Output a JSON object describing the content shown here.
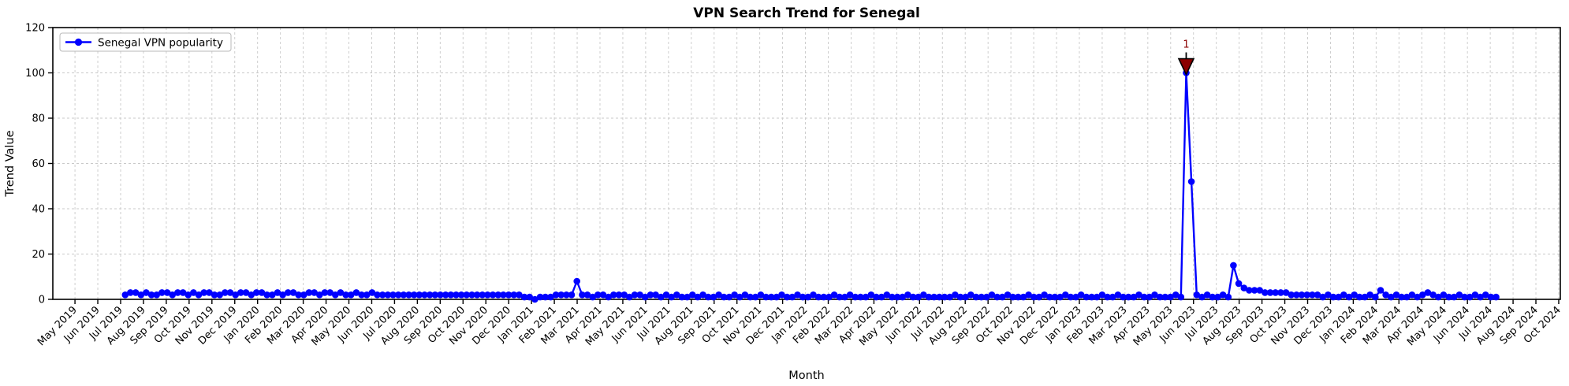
{
  "chart_data": {
    "type": "line",
    "title": "VPN Search Trend for Senegal",
    "xlabel": "Month",
    "ylabel": "Trend Value",
    "ylim": [
      0,
      120
    ],
    "yticks": [
      0,
      20,
      40,
      60,
      80,
      100,
      120
    ],
    "xlim_month_index": [
      -0.97,
      65.07
    ],
    "grid": true,
    "grid_color": "#c9c9c9",
    "background_color": "#ffffff",
    "x_tick_labels": [
      "May 2019",
      "Jun 2019",
      "Jul 2019",
      "Aug 2019",
      "Sep 2019",
      "Oct 2019",
      "Nov 2019",
      "Dec 2019",
      "Jan 2020",
      "Feb 2020",
      "Mar 2020",
      "Apr 2020",
      "May 2020",
      "Jun 2020",
      "Jul 2020",
      "Aug 2020",
      "Sep 2020",
      "Oct 2020",
      "Nov 2020",
      "Dec 2020",
      "Jan 2021",
      "Feb 2021",
      "Mar 2021",
      "Apr 2021",
      "May 2021",
      "Jun 2021",
      "Jul 2021",
      "Aug 2021",
      "Sep 2021",
      "Oct 2021",
      "Nov 2021",
      "Dec 2021",
      "Jan 2022",
      "Feb 2022",
      "Mar 2022",
      "Apr 2022",
      "May 2022",
      "Jun 2022",
      "Jul 2022",
      "Aug 2022",
      "Sep 2022",
      "Oct 2022",
      "Nov 2022",
      "Dec 2022",
      "Jan 2023",
      "Feb 2023",
      "Mar 2023",
      "Apr 2023",
      "May 2023",
      "Jun 2023",
      "Jul 2023",
      "Aug 2023",
      "Sep 2023",
      "Oct 2023",
      "Nov 2023",
      "Dec 2023",
      "Jan 2024",
      "Feb 2024",
      "Mar 2024",
      "Apr 2024",
      "May 2024",
      "Jun 2024",
      "Jul 2024",
      "Aug 2024",
      "Sep 2024",
      "Oct 2024"
    ],
    "legend": {
      "position": "upper-left",
      "entries": [
        {
          "label": "Senegal VPN popularity",
          "color": "#0000ff",
          "marker": "circle"
        }
      ]
    },
    "series": [
      {
        "name": "Senegal VPN popularity",
        "color": "#0000ff",
        "frequency": "weekly",
        "x_start_month_index": 2.2,
        "x_step_months": 0.2301,
        "values": [
          2,
          3,
          3,
          2,
          3,
          2,
          2,
          3,
          3,
          2,
          3,
          3,
          2,
          3,
          2,
          3,
          3,
          2,
          2,
          3,
          3,
          2,
          3,
          3,
          2,
          3,
          3,
          2,
          2,
          3,
          2,
          3,
          3,
          2,
          2,
          3,
          3,
          2,
          3,
          3,
          2,
          3,
          2,
          2,
          3,
          2,
          2,
          3,
          2,
          2,
          2,
          2,
          2,
          2,
          2,
          2,
          2,
          2,
          2,
          2,
          2,
          2,
          2,
          2,
          2,
          2,
          2,
          2,
          2,
          2,
          2,
          2,
          2,
          2,
          2,
          2,
          1,
          1,
          0,
          1,
          1,
          1,
          2,
          2,
          2,
          2,
          8,
          2,
          2,
          1,
          2,
          2,
          1,
          2,
          2,
          2,
          1,
          2,
          2,
          1,
          2,
          2,
          1,
          2,
          1,
          2,
          1,
          1,
          2,
          1,
          2,
          1,
          1,
          2,
          1,
          1,
          2,
          1,
          2,
          1,
          1,
          2,
          1,
          1,
          1,
          2,
          1,
          1,
          2,
          1,
          1,
          2,
          1,
          1,
          1,
          2,
          1,
          1,
          2,
          1,
          1,
          1,
          2,
          1,
          1,
          2,
          1,
          1,
          1,
          2,
          1,
          1,
          2,
          1,
          1,
          1,
          1,
          1,
          2,
          1,
          1,
          2,
          1,
          1,
          1,
          2,
          1,
          1,
          2,
          1,
          1,
          1,
          2,
          1,
          1,
          2,
          1,
          1,
          1,
          2,
          1,
          1,
          2,
          1,
          1,
          1,
          2,
          1,
          1,
          2,
          1,
          1,
          1,
          2,
          1,
          1,
          2,
          1,
          1,
          1,
          2,
          1,
          100,
          52,
          2,
          1,
          2,
          1,
          1,
          2,
          1,
          15,
          7,
          5,
          4,
          4,
          4,
          3,
          3,
          3,
          3,
          3,
          2,
          2,
          2,
          2,
          2,
          2,
          1,
          2,
          1,
          1,
          2,
          1,
          2,
          1,
          1,
          2,
          1,
          4,
          2,
          1,
          2,
          1,
          1,
          2,
          1,
          2,
          3,
          2,
          1,
          2,
          1,
          1,
          2,
          1,
          1,
          2,
          1,
          2,
          1,
          1
        ]
      }
    ],
    "annotations": [
      {
        "text": "1",
        "text_color": "#8b0000",
        "marker": "triangle-down",
        "marker_fill": "#8b0000",
        "marker_edge": "#000000",
        "series_index": 202,
        "value": 100
      }
    ]
  }
}
